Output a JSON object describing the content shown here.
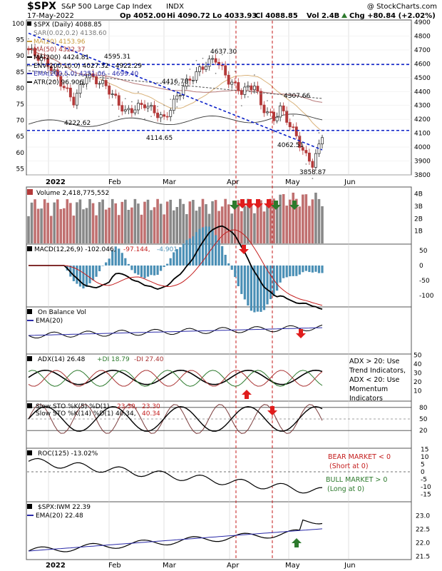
{
  "header": {
    "symbol": "$SPX",
    "name": "S&P 500 Large Cap Index",
    "exchange": "INDX",
    "copyright": "@ StockCharts.com",
    "date": "17-May-2022",
    "open": "Op 4052.00",
    "high": "Hi 4090.72",
    "low": "Lo 4033.93",
    "close": "Cl 4088.85",
    "volume": "Vol 2.4B",
    "change": "Chg +80.84 (+2.02%)",
    "change_icon": "triangle-up-icon"
  },
  "colors": {
    "up": "#2b2b2b",
    "down": "#b43a3a",
    "dashed_blue": "#0a1fc8",
    "red_vline": "#c61b1b",
    "green_arrow": "#2d7a2d",
    "red_arrow": "#e01d1d",
    "macd_hist": "#4a8fb5",
    "ema_blue": "#2a2aa8",
    "grid": "#cfcfcf"
  },
  "price_panel": {
    "legend": [
      "$SPX (Daily) 4088.85",
      "SAR(0.02,0.2) 4138.60",
      "MA(20) 4153.96",
      "MA(50) 4322.37",
      "MA(200) 4424.81",
      "ENV(200,10.0) 4027.32 - 4922.29",
      "EMA(200,5.0) 4251.06 - 4699.40",
      "ATR(20) 96.906"
    ],
    "left_axis": [
      "100",
      "95",
      "90",
      "85",
      "80",
      "75",
      "70",
      "65",
      "60",
      "55"
    ],
    "right_axis": [
      "4900",
      "4800",
      "4700",
      "4600",
      "4500",
      "4400",
      "4300",
      "4200",
      "4100",
      "4000",
      "3900",
      "3800"
    ],
    "annotations": [
      "4595.31",
      "4637.30",
      "4416.78",
      "4222.62",
      "4114.65",
      "4307.66",
      "4062.51",
      "3858.87"
    ]
  },
  "volume_panel": {
    "legend": "Volume 2,418,775,552",
    "axis": [
      "4B",
      "3B",
      "2B",
      "1B"
    ]
  },
  "macd_panel": {
    "legend_main": "MACD(12,26,9) -102.046,",
    "legend_signal": "-97.144,",
    "legend_hist": "-4.901",
    "axis": [
      "50",
      "0",
      "-50",
      "-100"
    ]
  },
  "obv_panel": {
    "legend1": "On Balance Vol",
    "legend2": "EMA(20)"
  },
  "adx_panel": {
    "legend_adx": "ADX(14) 26.48",
    "legend_pdi": "+DI 18.79",
    "legend_mdi": "-DI 27.40",
    "axis": [
      "50",
      "40",
      "30",
      "20",
      "10"
    ],
    "note_lines": [
      "ADX > 20: Use",
      "Trend Indicators,",
      "ADX < 20: Use",
      "Momentum",
      "Indicators"
    ]
  },
  "sto_panel": {
    "legend1_a": "Slow STO %K(5) %D(1)",
    "legend1_b": "23.30,",
    "legend1_c": "23.30",
    "legend2_a": "Slow STO %K(14) %D(1) 40.34,",
    "legend2_b": "40.34",
    "axis": [
      "80",
      "50",
      "20"
    ]
  },
  "roc_panel": {
    "legend": "ROC(125) -13.02%",
    "axis": [
      "15",
      "10",
      "5",
      "0",
      "-5",
      "-10",
      "-15"
    ],
    "bear_lines": [
      "BEAR MARKET < 0",
      "(Short at 0)"
    ],
    "bull_lines": [
      "BULL MARKET > 0",
      "(Long at 0)"
    ]
  },
  "ratio_panel": {
    "legend1": "$SPX:IWM 22.39",
    "legend2": "EMA(20) 22.48",
    "axis": [
      "23.0",
      "22.5",
      "22.0",
      "21.5"
    ]
  },
  "x_axis": {
    "year": "2022",
    "months": [
      "Feb",
      "Mar",
      "Apr",
      "May",
      "Jun"
    ]
  },
  "chart_data": {
    "type": "line",
    "title": "$SPX S&P 500 Large Cap Index INDX",
    "x": [
      "2022-01",
      "2022-02",
      "2022-03",
      "2022-04",
      "2022-05",
      "2022-06"
    ],
    "series": [
      {
        "name": "$SPX (Daily)",
        "values": [
          4580,
          4410,
          4170,
          4490,
          4120,
          4088.85
        ]
      }
    ],
    "ylim": [
      3800,
      4900
    ],
    "annotations": [
      4595.31,
      4637.3,
      4416.78,
      4222.62,
      4114.65,
      4307.66,
      4062.51,
      3858.87
    ],
    "horizontal_levels": [
      4595,
      4120
    ]
  }
}
